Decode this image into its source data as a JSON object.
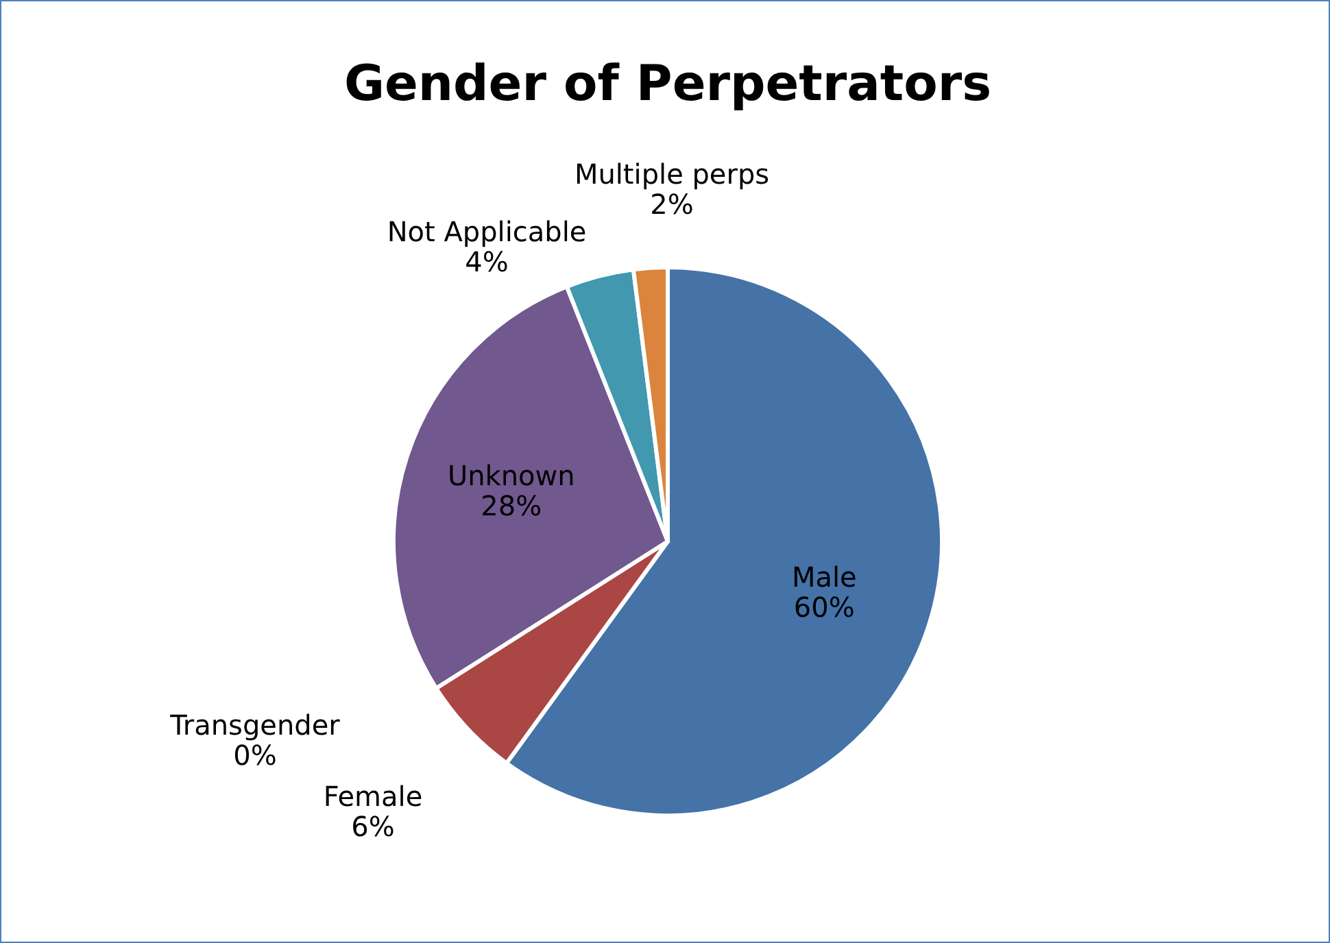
{
  "chart_data": {
    "type": "pie",
    "title": "Gender of Perpetrators",
    "categories": [
      "Male",
      "Female",
      "Transgender",
      "Unknown",
      "Not Applicable",
      "Multiple perps"
    ],
    "values": [
      60,
      6,
      0,
      28,
      4,
      2
    ],
    "value_labels": [
      "60%",
      "6%",
      "0%",
      "28%",
      "4%",
      "2%"
    ],
    "colors": [
      "#4572a7",
      "#aa4643",
      "#89a54e",
      "#71588f",
      "#4198af",
      "#db843d"
    ]
  }
}
